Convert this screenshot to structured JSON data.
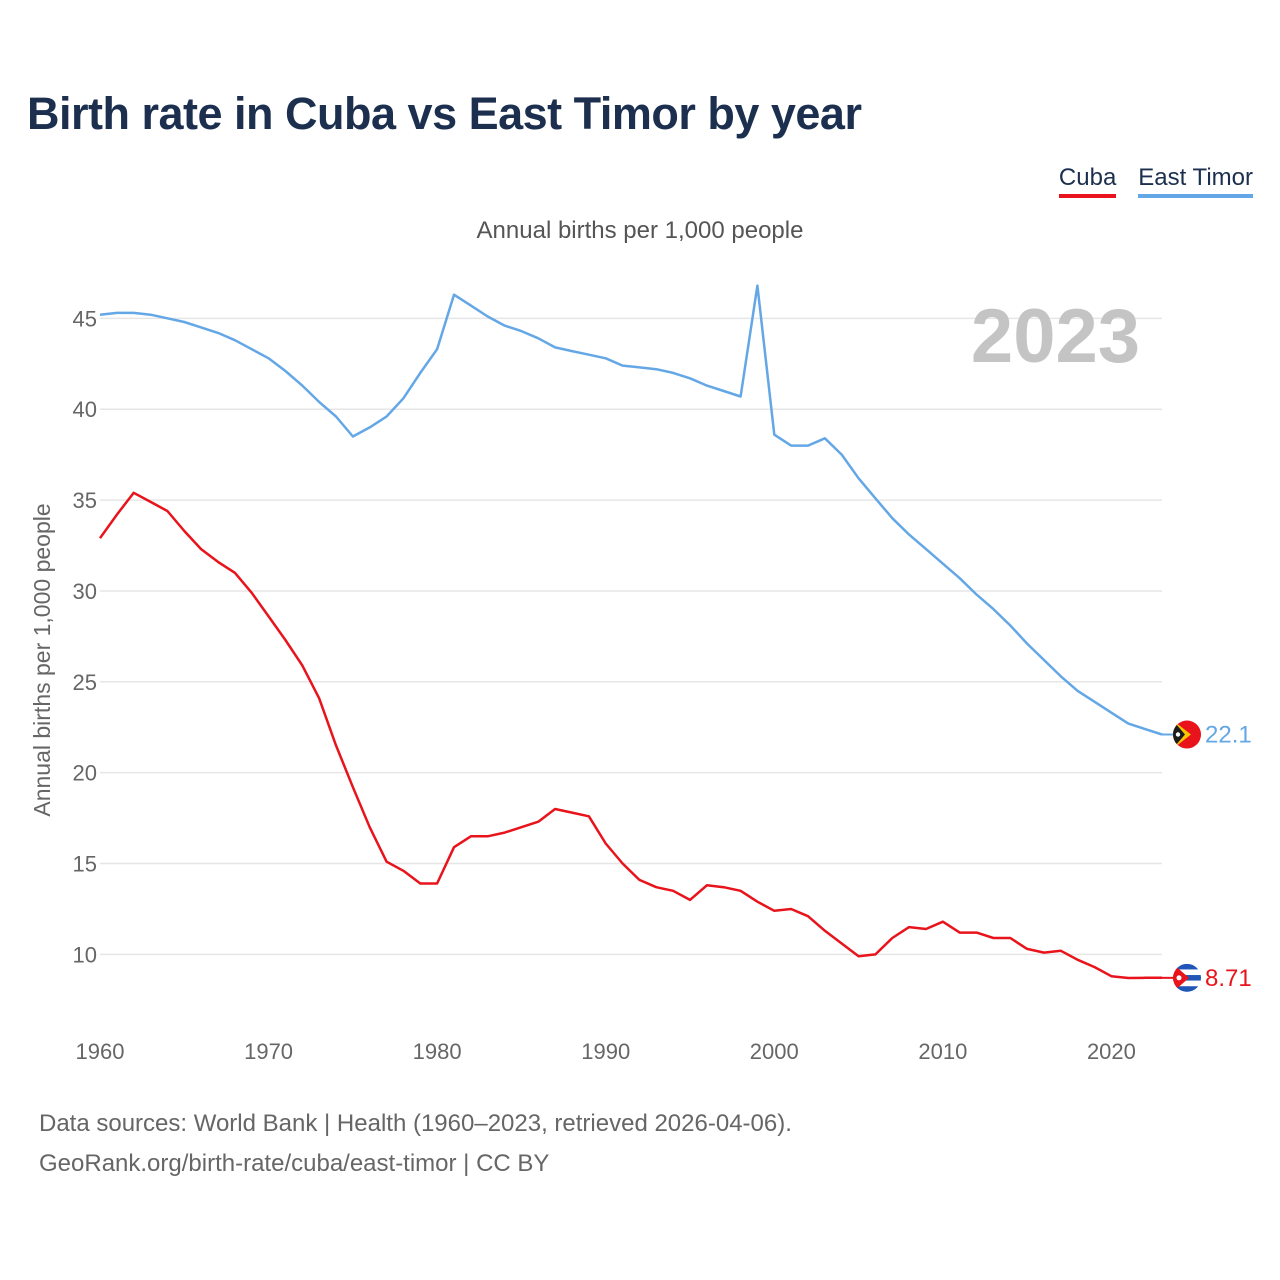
{
  "title": "Birth rate in Cuba vs East Timor by year",
  "subtitle": "Annual births per 1,000 people",
  "year_badge": "2023",
  "legend": [
    {
      "label": "Cuba",
      "color": "#e8131b"
    },
    {
      "label": "East Timor",
      "color": "#64a7e6"
    }
  ],
  "footer": {
    "line1": "Data sources: World Bank | Health (1960–2023, retrieved 2026-04-06).",
    "line2": "GeoRank.org/birth-rate/cuba/east-timor | CC BY"
  },
  "chart_data": {
    "type": "line",
    "title": "Birth rate in Cuba vs East Timor by year",
    "xlabel": "",
    "ylabel": "Annual births per 1,000 people",
    "xlim": [
      1960,
      2023
    ],
    "ylim": [
      6.5,
      47
    ],
    "xticks": [
      1960,
      1970,
      1980,
      1990,
      2000,
      2010,
      2020
    ],
    "yticks": [
      10,
      15,
      20,
      25,
      30,
      35,
      40,
      45
    ],
    "x": [
      1960,
      1961,
      1962,
      1963,
      1964,
      1965,
      1966,
      1967,
      1968,
      1969,
      1970,
      1971,
      1972,
      1973,
      1974,
      1975,
      1976,
      1977,
      1978,
      1979,
      1980,
      1981,
      1982,
      1983,
      1984,
      1985,
      1986,
      1987,
      1988,
      1989,
      1990,
      1991,
      1992,
      1993,
      1994,
      1995,
      1996,
      1997,
      1998,
      1999,
      2000,
      2001,
      2002,
      2003,
      2004,
      2005,
      2006,
      2007,
      2008,
      2009,
      2010,
      2011,
      2012,
      2013,
      2014,
      2015,
      2016,
      2017,
      2018,
      2019,
      2020,
      2021,
      2022,
      2023
    ],
    "series": [
      {
        "name": "Cuba",
        "color": "#e8131b",
        "end_label": "8.71",
        "values": [
          32.9,
          34.2,
          35.4,
          34.9,
          34.4,
          33.3,
          32.3,
          31.6,
          31.0,
          29.9,
          28.6,
          27.3,
          25.9,
          24.1,
          21.5,
          19.2,
          17.0,
          15.1,
          14.6,
          13.9,
          13.9,
          15.9,
          16.5,
          16.5,
          16.7,
          17.0,
          17.3,
          18.0,
          17.8,
          17.6,
          16.1,
          15.0,
          14.1,
          13.7,
          13.5,
          13.0,
          13.8,
          13.7,
          13.5,
          12.9,
          12.4,
          12.5,
          12.1,
          11.3,
          10.6,
          9.9,
          10.0,
          10.9,
          11.5,
          11.4,
          11.8,
          11.2,
          11.2,
          10.9,
          10.9,
          10.3,
          10.1,
          10.2,
          9.7,
          9.3,
          8.8,
          8.7,
          8.71,
          8.71
        ]
      },
      {
        "name": "East Timor",
        "color": "#64a7e6",
        "end_label": "22.1",
        "values": [
          45.2,
          45.3,
          45.3,
          45.2,
          45.0,
          44.8,
          44.5,
          44.2,
          43.8,
          43.3,
          42.8,
          42.1,
          41.3,
          40.4,
          39.6,
          38.5,
          39.0,
          39.6,
          40.6,
          42.0,
          43.3,
          46.3,
          45.7,
          45.1,
          44.6,
          44.3,
          43.9,
          43.4,
          43.2,
          43.0,
          42.8,
          42.4,
          42.3,
          42.2,
          42.0,
          41.7,
          41.3,
          41.0,
          40.7,
          46.8,
          38.6,
          38.0,
          38.0,
          38.4,
          37.5,
          36.2,
          35.1,
          34.0,
          33.1,
          32.3,
          31.5,
          30.7,
          29.8,
          29.0,
          28.1,
          27.1,
          26.2,
          25.3,
          24.5,
          23.9,
          23.3,
          22.7,
          22.4,
          22.1
        ]
      }
    ]
  }
}
